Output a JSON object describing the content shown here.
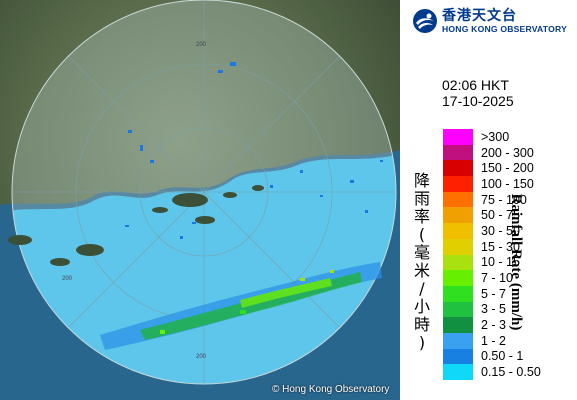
{
  "logo": {
    "chinese": "香港天文台",
    "english": "HONG KONG OBSERVATORY",
    "color": "#003a8c"
  },
  "timestamp": {
    "time": "02:06 HKT",
    "date": "17-10-2025"
  },
  "legend": {
    "title_en": "Rainfall Rate (mm/h)",
    "title_zh": "降雨率(毫米/小時)",
    "items": [
      {
        "label": ">300",
        "color": "#ff00ff"
      },
      {
        "label": "200 - 300",
        "color": "#c01080"
      },
      {
        "label": "150 - 200",
        "color": "#d80000"
      },
      {
        "label": "100 - 150",
        "color": "#ff2000"
      },
      {
        "label": "75 - 100",
        "color": "#ff7000"
      },
      {
        "label": "50 - 75",
        "color": "#f0a000"
      },
      {
        "label": "30 - 50",
        "color": "#f0c000"
      },
      {
        "label": "15 - 30",
        "color": "#e0d000"
      },
      {
        "label": "10 - 15",
        "color": "#a8e010"
      },
      {
        "label": "7 - 10",
        "color": "#66f000"
      },
      {
        "label": "5 - 7",
        "color": "#30e020"
      },
      {
        "label": "3 - 5",
        "color": "#20c040"
      },
      {
        "label": "2 - 3",
        "color": "#109040"
      },
      {
        "label": "1 - 2",
        "color": "#3aa0f0"
      },
      {
        "label": "0.50 - 1",
        "color": "#1880e0"
      },
      {
        "label": "0.15 - 0.50",
        "color": "#10d8f8"
      }
    ]
  },
  "map": {
    "range_labels": [
      "200",
      "200",
      "200"
    ],
    "copyright": "© Hong Kong Observatory"
  }
}
